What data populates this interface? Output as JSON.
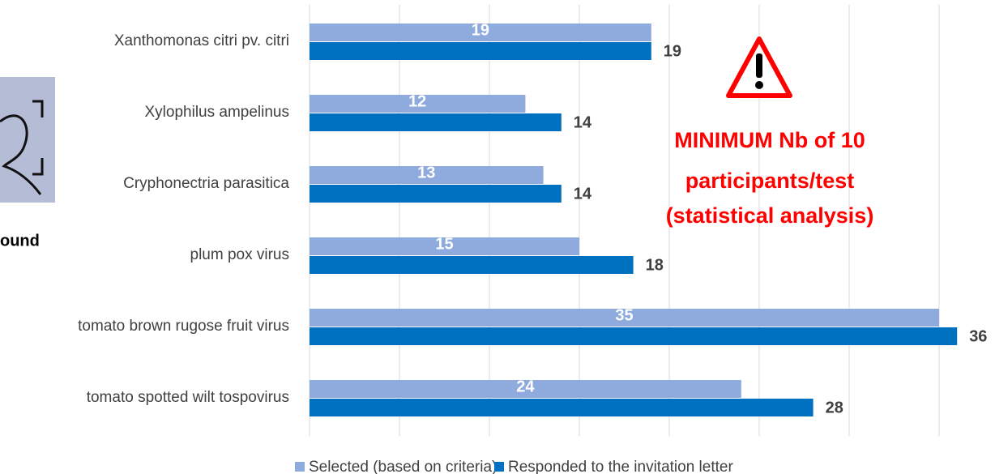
{
  "chart_data": {
    "type": "barh",
    "categories": [
      "Xanthomonas citri pv. citri",
      "Xylophilus ampelinus",
      "Cryphonectria parasitica",
      "plum pox virus",
      "tomato brown rugose fruit virus",
      "tomato spotted wilt tospovirus"
    ],
    "series": [
      {
        "name": "Selected (based on criteria)",
        "color": "#8faadc",
        "values": [
          19,
          12,
          13,
          15,
          35,
          24
        ]
      },
      {
        "name": "Responded to the invitation letter",
        "color": "#0070c0",
        "values": [
          19,
          14,
          14,
          18,
          36,
          28
        ]
      }
    ],
    "xlim": [
      0,
      40
    ],
    "xticks": [
      0,
      5,
      10,
      15,
      20,
      25,
      30,
      35,
      40
    ],
    "grid": true,
    "legend": "bottom",
    "annotation": [
      "MINIMUM Nb of 10",
      "participants/test",
      "(statistical analysis)"
    ],
    "side_text": "ound"
  }
}
